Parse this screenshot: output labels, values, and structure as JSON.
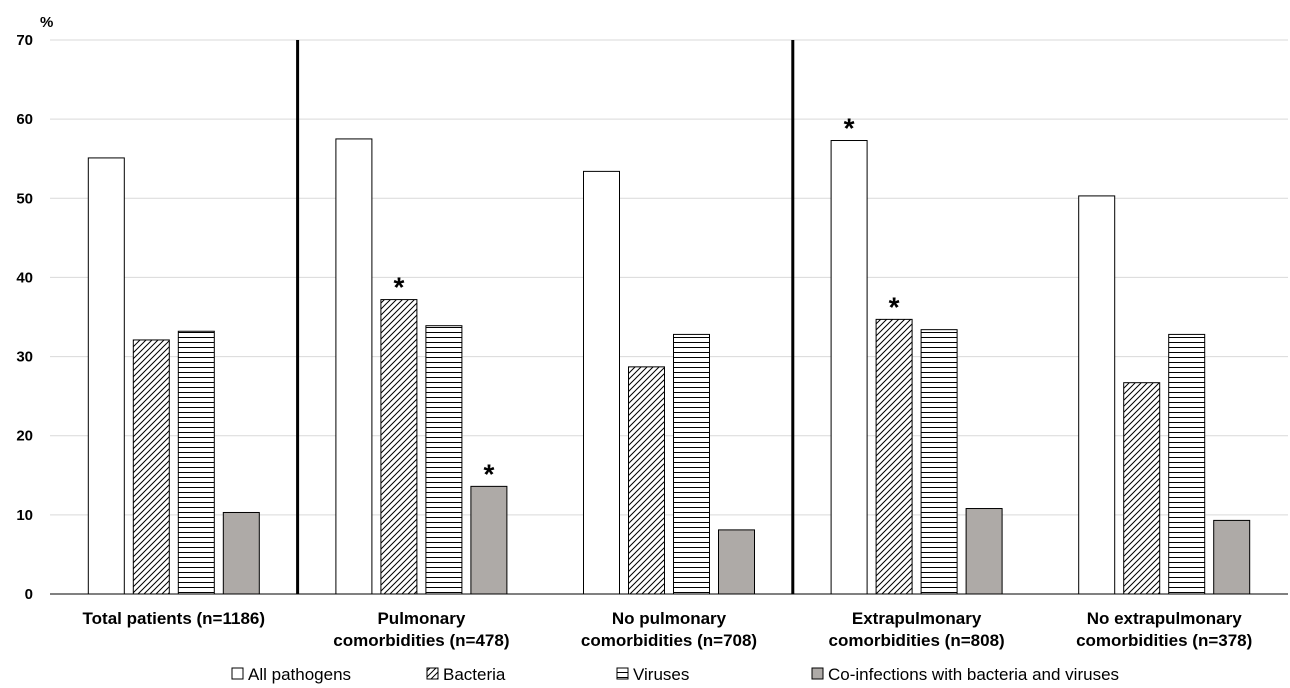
{
  "chart_data": {
    "type": "bar",
    "ylabel": "%",
    "ylim": [
      0,
      70
    ],
    "yticks": [
      0,
      10,
      20,
      30,
      40,
      50,
      60,
      70
    ],
    "grid": true,
    "legend_position": "bottom",
    "categories": [
      [
        "Total patients (n=1186)"
      ],
      [
        "Pulmonary",
        "comorbidities (n=478)"
      ],
      [
        "No pulmonary",
        "comorbidities (n=708)"
      ],
      [
        "Extrapulmonary",
        "comorbidities (n=808)"
      ],
      [
        "No extrapulmonary",
        "comorbidities (n=378)"
      ]
    ],
    "series": [
      {
        "name": "All pathogens",
        "pattern": "white",
        "values": [
          55.1,
          57.5,
          53.4,
          57.3,
          50.3
        ],
        "significant": [
          false,
          false,
          false,
          true,
          false
        ]
      },
      {
        "name": "Bacteria",
        "pattern": "diagonal",
        "values": [
          32.1,
          37.2,
          28.7,
          34.7,
          26.7
        ],
        "significant": [
          false,
          true,
          false,
          true,
          false
        ]
      },
      {
        "name": "Viruses",
        "pattern": "horizontal",
        "values": [
          33.2,
          33.9,
          32.8,
          33.4,
          32.8
        ],
        "significant": [
          false,
          false,
          false,
          false,
          false
        ]
      },
      {
        "name": "Co-infections with bacteria and viruses",
        "pattern": "gray",
        "values": [
          10.3,
          13.6,
          8.1,
          10.8,
          9.3
        ],
        "significant": [
          false,
          true,
          false,
          false,
          false
        ]
      }
    ],
    "significance_marker": "*",
    "group_dividers_after": [
      0,
      2
    ],
    "colors": {
      "gray_fill": "#aeaaa7",
      "grid": "#d9d9d9",
      "border": "#000000"
    }
  }
}
